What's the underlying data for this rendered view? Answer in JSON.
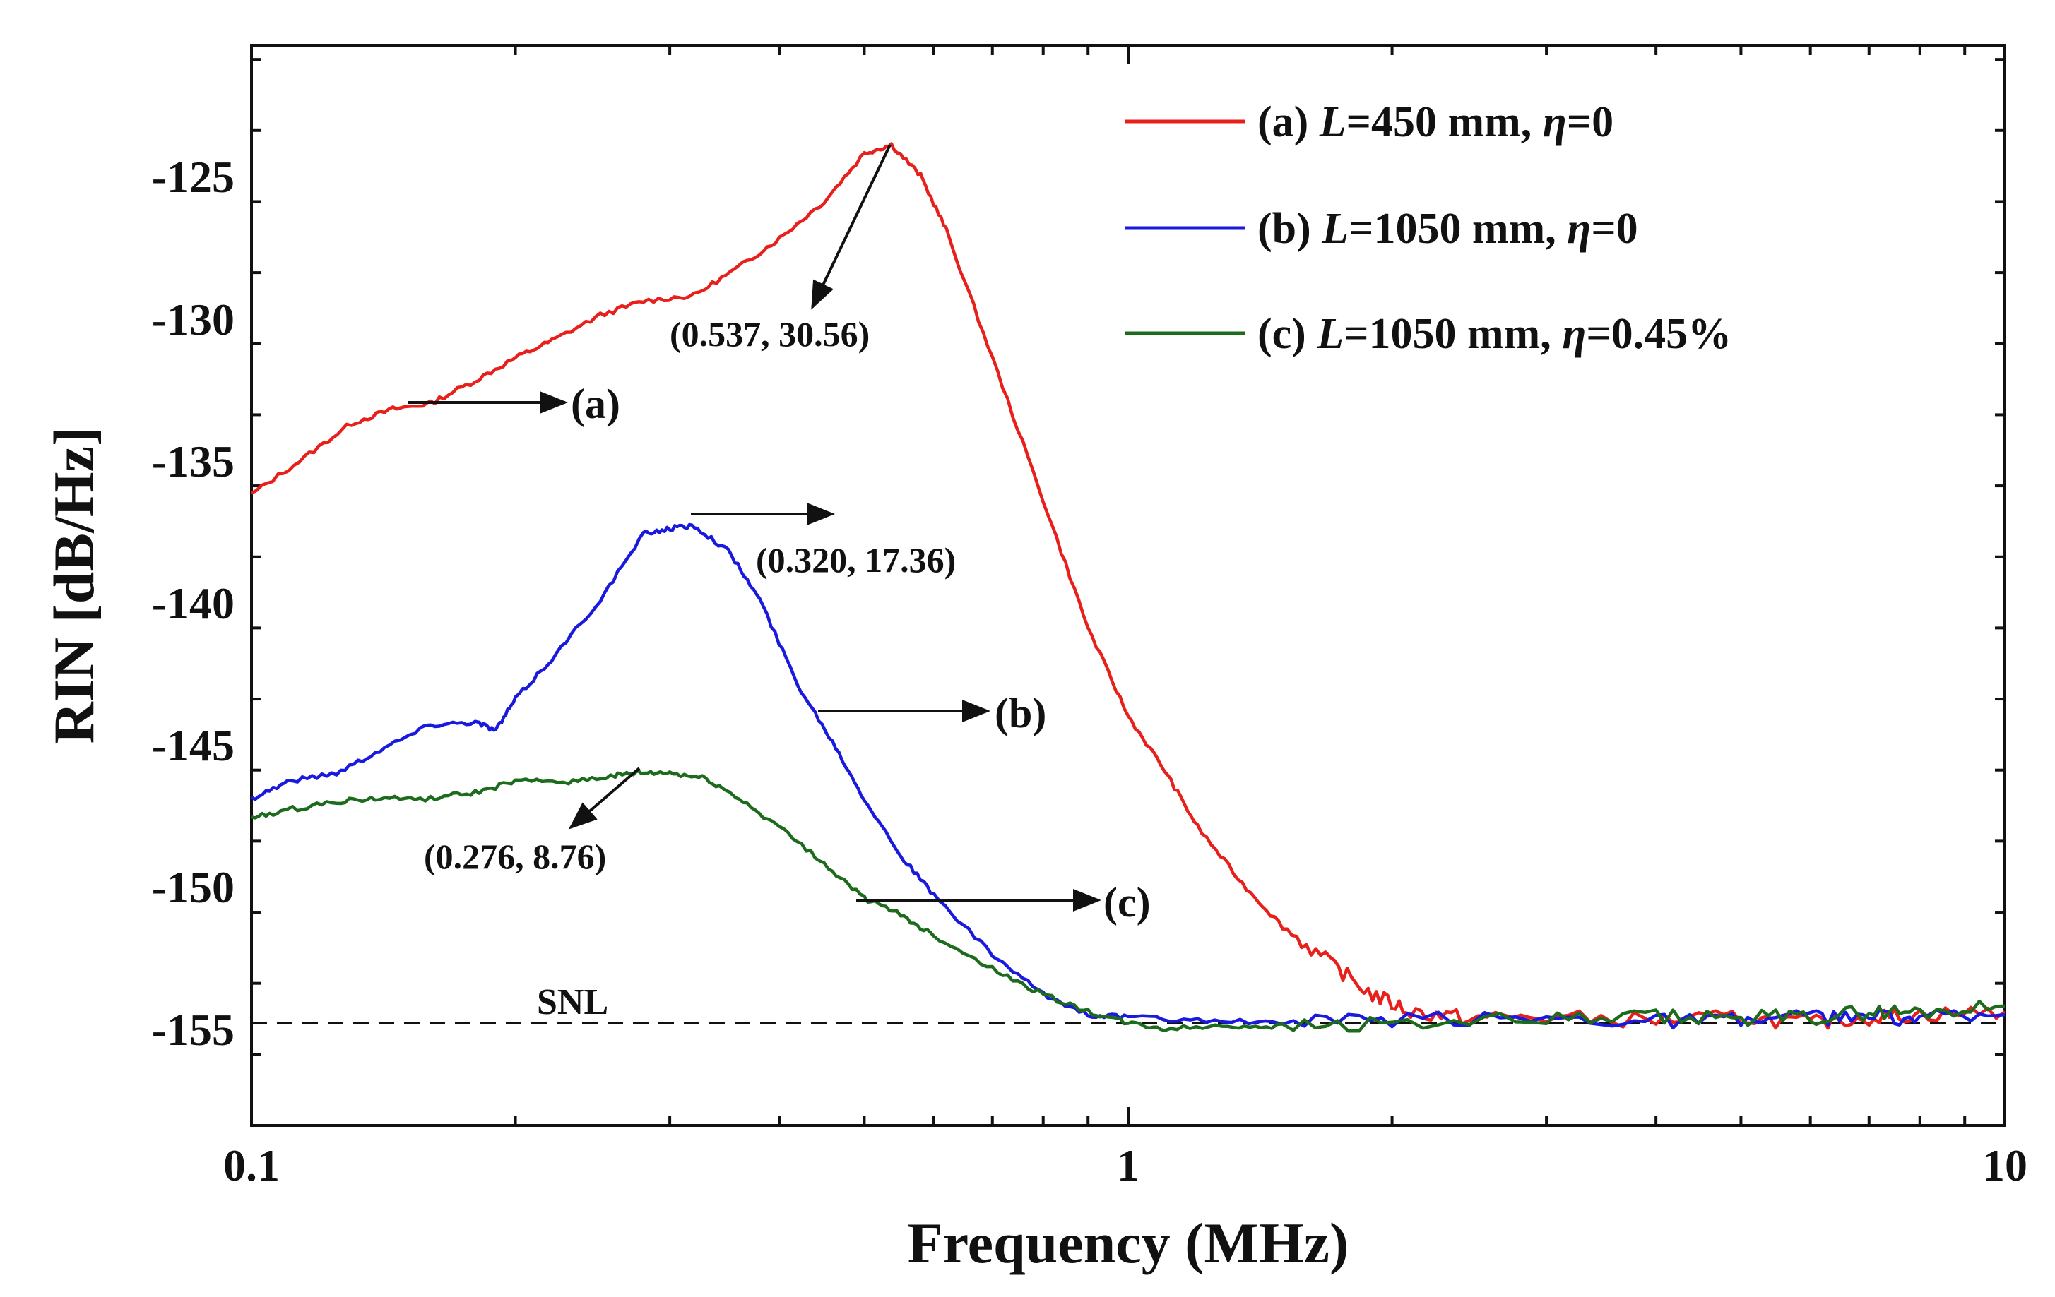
{
  "chart_data": {
    "type": "line",
    "xscale": "log",
    "xlim": [
      0.1,
      10
    ],
    "ylim": [
      -158,
      -120
    ],
    "xlabel": "Frequency (MHz)",
    "ylabel": "RIN [dB/Hz]",
    "x_ticks": [
      0.1,
      1,
      10
    ],
    "x_tick_labels": [
      "0.1",
      "1",
      "10"
    ],
    "y_ticks": [
      -125,
      -130,
      -135,
      -140,
      -145,
      -150,
      -155
    ],
    "y_tick_labels": [
      "-125",
      "-130",
      "-135",
      "-140",
      "-145",
      "-150",
      "-155"
    ],
    "legend_position": "top-right",
    "series": [
      {
        "name": "(a) L=450 mm, η=0",
        "legend_prefix": "(a) ",
        "legend_L": "L",
        "legend_mid": "=450 mm, ",
        "legend_eta": "η",
        "legend_suffix": "=0",
        "color": "#e8201c",
        "x": [
          0.1,
          0.115,
          0.13,
          0.145,
          0.16,
          0.18,
          0.2,
          0.22,
          0.25,
          0.28,
          0.32,
          0.36,
          0.4,
          0.45,
          0.5,
          0.537,
          0.58,
          0.62,
          0.7,
          0.8,
          0.9,
          1.0,
          1.1,
          1.2,
          1.35,
          1.5,
          1.7,
          1.9,
          2.1,
          2.4,
          3,
          4,
          5,
          6,
          7,
          8,
          10
        ],
        "y": [
          -135.8,
          -134.5,
          -133.3,
          -132.8,
          -132.6,
          -131.8,
          -131.0,
          -130.4,
          -129.5,
          -129.0,
          -128.8,
          -127.8,
          -126.8,
          -125.5,
          -123.8,
          -123.5,
          -124.6,
          -126.5,
          -131.0,
          -136.0,
          -140.5,
          -143.6,
          -145.5,
          -147.5,
          -149.5,
          -151.0,
          -152.3,
          -153.4,
          -154.0,
          -154.2,
          -154.2,
          -154.3,
          -154.2,
          -154.4,
          -154.2,
          -154.1,
          -154.0
        ]
      },
      {
        "name": "(b) L=1050 mm, η=0",
        "legend_prefix": "(b) ",
        "legend_L": "L",
        "legend_mid": "=1050 mm, ",
        "legend_eta": "η",
        "legend_suffix": "=0",
        "color": "#1a1adf",
        "x": [
          0.1,
          0.11,
          0.125,
          0.14,
          0.16,
          0.18,
          0.19,
          0.2,
          0.22,
          0.25,
          0.28,
          0.3,
          0.32,
          0.35,
          0.38,
          0.42,
          0.46,
          0.5,
          0.55,
          0.6,
          0.7,
          0.8,
          0.9,
          1.0,
          1.2,
          1.5,
          2,
          3,
          4,
          5,
          6,
          7,
          8,
          10
        ],
        "y": [
          -146.5,
          -145.9,
          -145.6,
          -144.8,
          -143.9,
          -143.8,
          -144.1,
          -143.0,
          -141.6,
          -139.5,
          -137.2,
          -137.0,
          -136.9,
          -137.8,
          -139.5,
          -142.5,
          -144.5,
          -146.5,
          -148.5,
          -149.9,
          -152.0,
          -153.4,
          -154.1,
          -154.2,
          -154.3,
          -154.4,
          -154.3,
          -154.2,
          -154.3,
          -154.3,
          -154.2,
          -154.2,
          -154.2,
          -154.1
        ]
      },
      {
        "name": "(c) L=1050 mm, η=0.45%",
        "legend_prefix": "(c) ",
        "legend_L": "L",
        "legend_mid": "=1050 mm, ",
        "legend_eta": "η",
        "legend_suffix": "=0.45%",
        "color": "#1d6b1d",
        "x": [
          0.1,
          0.11,
          0.125,
          0.14,
          0.16,
          0.18,
          0.2,
          0.23,
          0.26,
          0.276,
          0.3,
          0.33,
          0.36,
          0.4,
          0.45,
          0.5,
          0.55,
          0.6,
          0.7,
          0.8,
          0.9,
          1.0,
          1.1,
          1.3,
          1.5,
          2,
          3,
          4,
          5,
          6,
          7,
          8,
          10
        ],
        "y": [
          -147.2,
          -146.9,
          -146.6,
          -146.5,
          -146.5,
          -146.3,
          -145.9,
          -145.9,
          -145.7,
          -145.6,
          -145.6,
          -145.8,
          -146.5,
          -147.5,
          -148.8,
          -150.0,
          -150.6,
          -151.3,
          -152.5,
          -153.4,
          -154.0,
          -154.4,
          -154.6,
          -154.5,
          -154.5,
          -154.4,
          -154.3,
          -154.2,
          -154.2,
          -154.2,
          -154.0,
          -154.0,
          -153.8
        ]
      }
    ],
    "reference_lines": [
      {
        "label": "SNL",
        "y": -154.4,
        "style": "dashed"
      }
    ],
    "annotations": [
      {
        "text": "(0.537, 30.56)",
        "point": [
          0.537,
          -123.5
        ]
      },
      {
        "text": "(0.320, 17.36)",
        "point": [
          0.32,
          -136.9
        ]
      },
      {
        "text": "(0.276, 8.76)",
        "point": [
          0.276,
          -145.6
        ]
      },
      {
        "text": "(a)",
        "point": [
          0.15,
          -132.8
        ]
      },
      {
        "text": "(b)",
        "point": [
          0.47,
          -143.6
        ]
      },
      {
        "text": "(c)",
        "point": [
          0.52,
          -150.0
        ]
      }
    ]
  }
}
